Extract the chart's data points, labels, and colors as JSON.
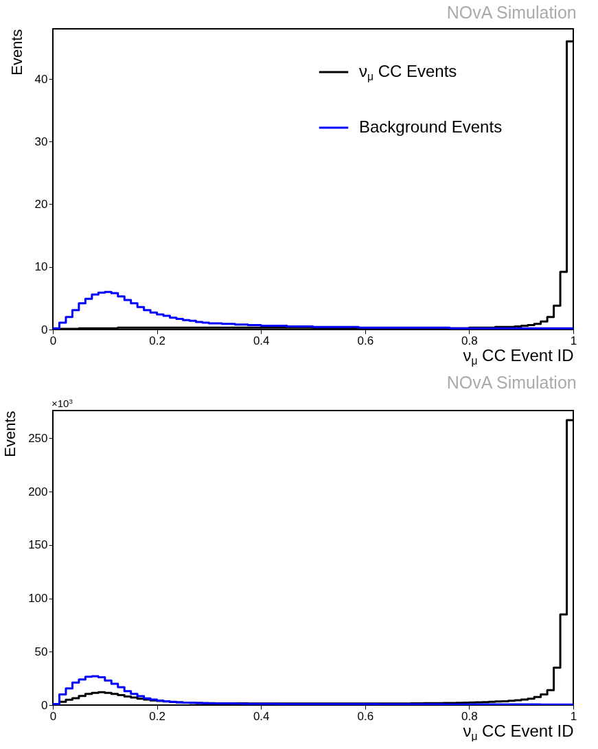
{
  "chart_data": [
    {
      "type": "histogram",
      "title": "NOvA Simulation",
      "xlabel": "ν$_{μ}$ CC Event ID",
      "ylabel": "Events",
      "legend": "top right",
      "xlim": [
        0,
        1
      ],
      "xticks": [
        0,
        0.2,
        0.4,
        0.6,
        0.8,
        1
      ],
      "ylim": [
        0,
        48
      ],
      "yticks": [
        0,
        10,
        20,
        30,
        40
      ],
      "bins": [
        0,
        0.0125,
        0.025,
        0.0375,
        0.05,
        0.0625,
        0.075,
        0.0875,
        0.1,
        0.1125,
        0.125,
        0.1375,
        0.15,
        0.1625,
        0.175,
        0.1875,
        0.2,
        0.2125,
        0.225,
        0.2375,
        0.25,
        0.2625,
        0.275,
        0.2875,
        0.3,
        0.3125,
        0.325,
        0.3375,
        0.35,
        0.3625,
        0.375,
        0.3875,
        0.4,
        0.4125,
        0.425,
        0.4375,
        0.45,
        0.4625,
        0.475,
        0.4875,
        0.5,
        0.5125,
        0.525,
        0.5375,
        0.55,
        0.5625,
        0.575,
        0.5875,
        0.6,
        0.6125,
        0.625,
        0.6375,
        0.65,
        0.6625,
        0.675,
        0.6875,
        0.7,
        0.7125,
        0.725,
        0.7375,
        0.75,
        0.7625,
        0.775,
        0.7875,
        0.8,
        0.8125,
        0.825,
        0.8375,
        0.85,
        0.8625,
        0.875,
        0.8875,
        0.9,
        0.9125,
        0.925,
        0.9375,
        0.95,
        0.9625,
        0.975,
        0.9875,
        1
      ],
      "series": [
        {
          "name": "ν$_{μ}$ CC Events",
          "color": "#000000",
          "values": [
            0,
            0.1,
            0.1,
            0.1,
            0.2,
            0.2,
            0.2,
            0.2,
            0.2,
            0.2,
            0.3,
            0.3,
            0.3,
            0.3,
            0.3,
            0.3,
            0.3,
            0.3,
            0.3,
            0.3,
            0.3,
            0.3,
            0.3,
            0.3,
            0.3,
            0.3,
            0.3,
            0.3,
            0.3,
            0.3,
            0.3,
            0.3,
            0.3,
            0.3,
            0.3,
            0.3,
            0.3,
            0.3,
            0.3,
            0.3,
            0.2,
            0.2,
            0.2,
            0.2,
            0.2,
            0.2,
            0.2,
            0.2,
            0.2,
            0.2,
            0.2,
            0.2,
            0.2,
            0.2,
            0.2,
            0.2,
            0.2,
            0.2,
            0.2,
            0.2,
            0.2,
            0.2,
            0.2,
            0.2,
            0.3,
            0.3,
            0.3,
            0.3,
            0.4,
            0.4,
            0.4,
            0.5,
            0.6,
            0.7,
            0.9,
            1.3,
            2.0,
            3.8,
            9.2,
            46
          ]
        },
        {
          "name": "Background Events",
          "color": "#0000ff",
          "values": [
            0.2,
            1.1,
            2.0,
            3.1,
            4.2,
            4.9,
            5.6,
            5.9,
            6.0,
            5.8,
            5.3,
            4.7,
            4.2,
            3.6,
            3.1,
            2.7,
            2.4,
            2.2,
            1.9,
            1.7,
            1.5,
            1.4,
            1.2,
            1.1,
            1.0,
            1.0,
            0.9,
            0.9,
            0.8,
            0.8,
            0.7,
            0.7,
            0.6,
            0.6,
            0.6,
            0.6,
            0.5,
            0.5,
            0.5,
            0.5,
            0.4,
            0.4,
            0.4,
            0.4,
            0.4,
            0.4,
            0.4,
            0.3,
            0.3,
            0.3,
            0.3,
            0.3,
            0.3,
            0.3,
            0.3,
            0.3,
            0.3,
            0.3,
            0.3,
            0.3,
            0.3,
            0.2,
            0.2,
            0.2,
            0.2,
            0.2,
            0.2,
            0.2,
            0.2,
            0.2,
            0.2,
            0.2,
            0.2,
            0.2,
            0.2,
            0.2,
            0.2,
            0.2,
            0.2,
            0.2
          ]
        }
      ]
    },
    {
      "type": "histogram",
      "title": "NOvA Simulation",
      "xlabel": "ν$_{μ}$ CC Event ID",
      "ylabel": "Events",
      "legend": "top right",
      "annotations": [
        "×10$^{3}$"
      ],
      "xlim": [
        0,
        1
      ],
      "xticks": [
        0,
        0.2,
        0.4,
        0.6,
        0.8,
        1
      ],
      "ylim": [
        0,
        276
      ],
      "yticks": [
        0,
        50,
        100,
        150,
        200,
        250
      ],
      "bins": [
        0,
        0.0125,
        0.025,
        0.0375,
        0.05,
        0.0625,
        0.075,
        0.0875,
        0.1,
        0.1125,
        0.125,
        0.1375,
        0.15,
        0.1625,
        0.175,
        0.1875,
        0.2,
        0.2125,
        0.225,
        0.2375,
        0.25,
        0.2625,
        0.275,
        0.2875,
        0.3,
        0.3125,
        0.325,
        0.3375,
        0.35,
        0.3625,
        0.375,
        0.3875,
        0.4,
        0.4125,
        0.425,
        0.4375,
        0.45,
        0.4625,
        0.475,
        0.4875,
        0.5,
        0.5125,
        0.525,
        0.5375,
        0.55,
        0.5625,
        0.575,
        0.5875,
        0.6,
        0.6125,
        0.625,
        0.6375,
        0.65,
        0.6625,
        0.675,
        0.6875,
        0.7,
        0.7125,
        0.725,
        0.7375,
        0.75,
        0.7625,
        0.775,
        0.7875,
        0.8,
        0.8125,
        0.825,
        0.8375,
        0.85,
        0.8625,
        0.875,
        0.8875,
        0.9,
        0.9125,
        0.925,
        0.9375,
        0.95,
        0.9625,
        0.975,
        0.9875,
        1
      ],
      "series": [
        {
          "name": "ν$_{μ}$ CC Events",
          "color": "#000000",
          "values": [
            0.5,
            3,
            5,
            6.5,
            8.5,
            10.4,
            11.5,
            12,
            11.5,
            10.5,
            9.3,
            8.1,
            7,
            6,
            5.2,
            4.4,
            3.8,
            3.3,
            2.9,
            2.6,
            2.3,
            2.1,
            1.9,
            1.8,
            1.7,
            1.6,
            1.6,
            1.6,
            1.6,
            1.6,
            1.5,
            1.5,
            1.5,
            1.5,
            1.5,
            1.5,
            1.5,
            1.5,
            1.5,
            1.5,
            1.4,
            1.4,
            1.4,
            1.4,
            1.4,
            1.4,
            1.4,
            1.4,
            1.4,
            1.4,
            1.4,
            1.4,
            1.5,
            1.5,
            1.5,
            1.6,
            1.6,
            1.7,
            1.7,
            1.8,
            1.9,
            2.0,
            2.1,
            2.2,
            2.4,
            2.6,
            2.8,
            3.0,
            3.3,
            3.6,
            4.0,
            4.5,
            5.2,
            6.0,
            7.5,
            10,
            14,
            35,
            85,
            267
          ]
        },
        {
          "name": "Background Events",
          "color": "#0000ff",
          "values": [
            1,
            10,
            15.6,
            21,
            24,
            26.5,
            27,
            26,
            23,
            20,
            16.7,
            13,
            10.4,
            8.3,
            6.3,
            5.2,
            4.2,
            3.5,
            3.0,
            2.6,
            2.3,
            2.1,
            1.9,
            1.7,
            1.6,
            1.5,
            1.4,
            1.4,
            1.3,
            1.3,
            1.2,
            1.2,
            1.1,
            1.1,
            1.1,
            1.0,
            1.0,
            1.0,
            1.0,
            1.0,
            0.9,
            0.9,
            0.9,
            0.9,
            0.9,
            0.9,
            0.9,
            0.9,
            0.9,
            0.9,
            0.8,
            0.8,
            0.8,
            0.8,
            0.8,
            0.8,
            0.8,
            0.8,
            0.8,
            0.8,
            0.7,
            0.7,
            0.7,
            0.7,
            0.7,
            0.7,
            0.7,
            0.7,
            0.7,
            0.7,
            0.6,
            0.6,
            0.6,
            0.6,
            0.6,
            0.5,
            0.5,
            0.5,
            0.5,
            0.5
          ]
        }
      ]
    }
  ]
}
